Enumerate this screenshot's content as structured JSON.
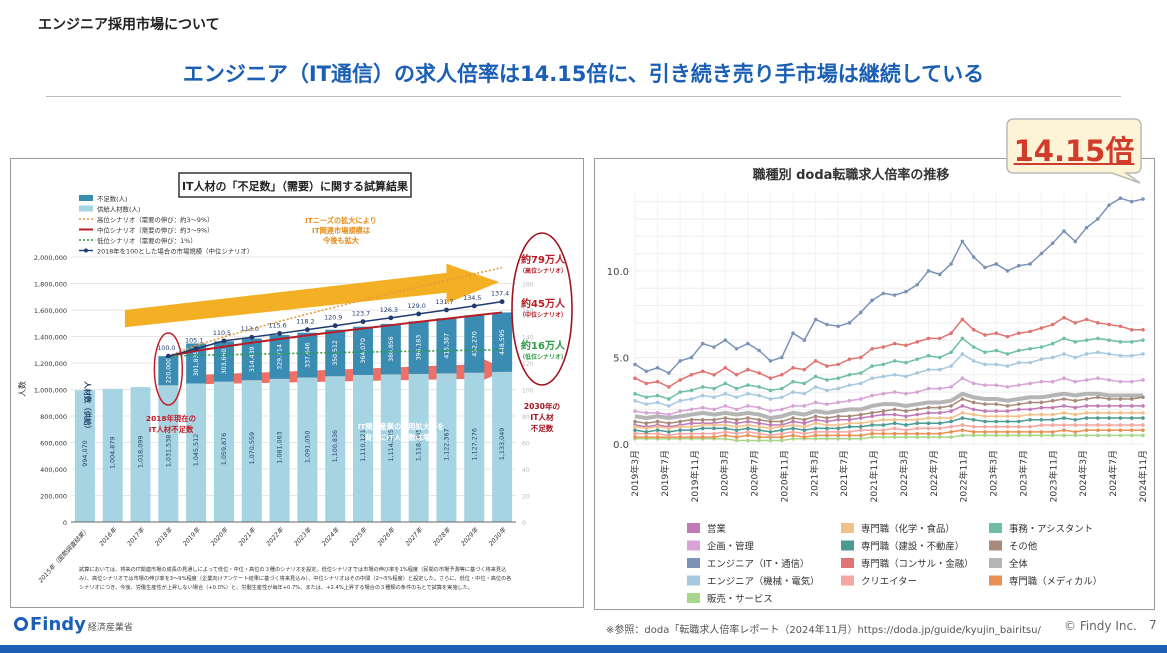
{
  "header": {
    "section_label": "エンジニア採用市場について",
    "headline": "エンジニア（IT通信）の求人倍率は14.15倍に、引き続き売り手市場は継続している"
  },
  "callout": {
    "text": "14.15倍",
    "fill": "#fdf3d6",
    "stroke": "#b9b9b9"
  },
  "footer": {
    "logo": "Findy",
    "left_source": "経済産業省",
    "source": "※参照：doda「転職求人倍率レポート（2024年11月）https://doda.jp/guide/kyujin_bairitsu/",
    "copyright": "© Findy Inc.",
    "page": "7"
  },
  "colors": {
    "bar": "#a7d4e2",
    "shortage": "#3b8cb3",
    "high": "#e79a3a",
    "mid": "#b81c26",
    "low": "#2d9a45",
    "line": "#1f3a6e",
    "accent": "#1a5fb4"
  },
  "chart_data": [
    {
      "type": "bar",
      "title": "IT人材の「不足数」（需要）に関する試算結果",
      "ylabel": "人数",
      "ylim": [
        0,
        2000000
      ],
      "y_ticks": [
        "0",
        "200,000",
        "400,000",
        "600,000",
        "800,000",
        "1,000,000",
        "1,200,000",
        "1,400,000",
        "1,600,000",
        "1,800,000",
        "2,000,000"
      ],
      "categories": [
        "2015年（国勢調査結果）",
        "2016年",
        "2017年",
        "2018年",
        "2019年",
        "2020年",
        "2021年",
        "2022年",
        "2023年",
        "2024年",
        "2025年",
        "2026年",
        "2027年",
        "2028年",
        "2029年",
        "2030年"
      ],
      "series": [
        {
          "name": "供給人材数(人)",
          "values": [
            994070,
            1004879,
            1018099,
            1031538,
            1045512,
            1059876,
            1070559,
            1081063,
            1091050,
            1100836,
            1110121,
            1114225,
            1118085,
            1122367,
            1127276,
            1133049
          ]
        },
        {
          "name": "不足数(人)",
          "values": [
            null,
            null,
            null,
            220000,
            301835,
            303660,
            314439,
            329714,
            337646,
            350512,
            364070,
            380856,
            396183,
            415387,
            432270,
            448595
          ]
        }
      ],
      "supply_labels": [
        "994,070",
        "1,004,879",
        "1,018,099",
        "1,031,538",
        "1,045,512",
        "1,059,876",
        "1,070,559",
        "1,081,063",
        "1,091,050",
        "1,100,836",
        "1,110,121",
        "1,114,225",
        "1,118,085",
        "1,122,367",
        "1,127,276",
        "1,133,049"
      ],
      "shortage_labels": [
        "",
        "",
        "",
        "220,000",
        "301,835",
        "303,660",
        "314,439",
        "329,714",
        "337,646",
        "350,512",
        "364,070",
        "380,856",
        "396,183",
        "415,387",
        "432,270",
        "448,595"
      ],
      "market_line": {
        "name": "2018年を100とした場合の市場規模（中位シナリオ）",
        "values": [
          100.0,
          105.1,
          110.5,
          113.0,
          115.6,
          118.2,
          120.9,
          123.7,
          126.3,
          129.0,
          131.7,
          134.5,
          137.4
        ],
        "labels": [
          "100.0",
          "105.1",
          "110.5",
          "113.0",
          "115.6",
          "118.2",
          "120.9",
          "123.7",
          "126.3",
          "129.0",
          "131.7",
          "134.5",
          "137.4"
        ]
      },
      "scenarios": [
        {
          "name": "高位シナリオ（需要の伸び：約3〜9%）",
          "result": "約79万人",
          "sub": "（高位シナリオ）"
        },
        {
          "name": "中位シナリオ（需要の伸び：約3〜9%）",
          "result": "約45万人",
          "sub": "（中位シナリオ）"
        },
        {
          "name": "低位シナリオ（需要の伸び：1%）",
          "result": "約16万人",
          "sub": "（低位シナリオ）"
        }
      ],
      "legend": [
        "不足数(人)",
        "供給人材数(人)",
        "高位シナリオ（需要の伸び：約3〜9%）",
        "中位シナリオ（需要の伸び：約3〜9%）",
        "低位シナリオ（需要の伸び：1%）",
        "2018年を100とした場合の市場規模（中位シナリオ）"
      ],
      "annotations": {
        "upper_arrow": [
          "ITニーズの拡大により",
          "IT関連市場規模は",
          "今後も拡大"
        ],
        "lower_arrow": [
          "IT関連産業の採用拡大等を",
          "背景にIT人材数は増加"
        ],
        "year_2018": [
          "2018年現在の",
          "IT人材不足数"
        ],
        "year_2030": [
          "2030年の",
          "IT人材",
          "不足数"
        ],
        "side_label": "人材数（供給）"
      },
      "footnote": [
        "試算においては、将来のIT関連市場の成長の見通しによって低位・中位・高位の３種のシナリオを設定。低位シナリオでは市場の伸び率を1%程度（民間の市場予測等に基づく将来見込",
        "み）、高位シナリオでは市場の伸び率を3〜9%程度（企業向けアンケート結果に基づく将来見込み）、中位シナリオはその中間（2〜5%程度）と設定した。さらに、低位・中位・高位の各",
        "シナリオにつき、今後、労働生産性が上昇しない場合（+0.0%）と、労働生産性が毎年+0.7%、または、+2.4%上昇する場合の３種類の条件のもとで試算を実施した。"
      ]
    },
    {
      "type": "line",
      "title": "職種別  doda転職求人倍率の推移",
      "ylim": [
        0,
        14.5
      ],
      "y_ticks": [
        "0.0",
        "5.0",
        "10.0"
      ],
      "x_ticks": [
        "2019年3月",
        "2019年7月",
        "2019年11月",
        "2020年3月",
        "2020年7月",
        "2020年11月",
        "2021年3月",
        "2021年7月",
        "2021年11月",
        "2022年3月",
        "2022年7月",
        "2022年11月",
        "2023年3月",
        "2023年7月",
        "2023年11月",
        "2024年3月",
        "2024年7月",
        "2024年11月"
      ],
      "series": [
        {
          "name": "エンジニア（IT・通信）",
          "color": "#7c93b8",
          "values": [
            4.6,
            4.2,
            4.4,
            4.1,
            4.8,
            5.0,
            5.8,
            5.6,
            6.0,
            5.5,
            5.8,
            5.4,
            4.8,
            5.0,
            6.4,
            6.0,
            7.2,
            6.9,
            6.8,
            7.0,
            7.6,
            8.3,
            8.7,
            8.6,
            8.8,
            9.2,
            10.0,
            9.8,
            10.4,
            11.7,
            10.8,
            10.2,
            10.4,
            10.0,
            10.3,
            10.4,
            11.0,
            11.6,
            12.3,
            11.7,
            12.5,
            13.0,
            13.8,
            14.2,
            14.0,
            14.15
          ]
        },
        {
          "name": "専門職（コンサル・金融）",
          "color": "#e07470",
          "values": [
            3.8,
            3.5,
            3.6,
            3.3,
            3.7,
            4.0,
            4.2,
            4.0,
            4.4,
            4.0,
            4.3,
            4.1,
            3.8,
            4.0,
            4.4,
            4.3,
            4.8,
            4.5,
            4.6,
            4.9,
            5.0,
            5.5,
            5.6,
            5.8,
            5.7,
            5.9,
            6.1,
            6.1,
            6.4,
            7.2,
            6.6,
            6.3,
            6.4,
            6.2,
            6.4,
            6.5,
            6.7,
            6.9,
            7.3,
            7.0,
            7.2,
            7.0,
            6.9,
            6.8,
            6.6,
            6.6
          ]
        },
        {
          "name": "事務・アシスタント",
          "color": "#6fbfa8",
          "values": [
            2.9,
            2.7,
            2.8,
            2.6,
            3.0,
            3.1,
            3.3,
            3.2,
            3.5,
            3.2,
            3.4,
            3.3,
            3.1,
            3.2,
            3.6,
            3.5,
            3.9,
            3.7,
            3.8,
            4.0,
            4.1,
            4.5,
            4.6,
            4.8,
            4.7,
            4.9,
            5.1,
            5.0,
            5.3,
            6.1,
            5.6,
            5.3,
            5.4,
            5.2,
            5.4,
            5.5,
            5.6,
            5.8,
            6.1,
            5.9,
            6.0,
            6.1,
            6.0,
            5.9,
            5.9,
            6.0
          ]
        },
        {
          "name": "エンジニア（機械・電気）",
          "color": "#a6c9e0",
          "values": [
            2.5,
            2.3,
            2.4,
            2.2,
            2.5,
            2.6,
            2.8,
            2.7,
            2.9,
            2.7,
            2.9,
            2.8,
            2.6,
            2.7,
            3.0,
            2.9,
            3.3,
            3.1,
            3.2,
            3.4,
            3.5,
            3.8,
            3.9,
            4.0,
            3.9,
            4.1,
            4.3,
            4.3,
            4.5,
            5.2,
            4.8,
            4.6,
            4.6,
            4.5,
            4.7,
            4.7,
            4.9,
            5.0,
            5.2,
            5.0,
            5.2,
            5.3,
            5.2,
            5.1,
            5.1,
            5.2
          ]
        },
        {
          "name": "企画・管理",
          "color": "#d7a3d6",
          "values": [
            1.9,
            1.8,
            1.8,
            1.7,
            1.9,
            2.0,
            2.1,
            2.0,
            2.2,
            2.0,
            2.2,
            2.1,
            1.9,
            2.0,
            2.2,
            2.2,
            2.4,
            2.3,
            2.4,
            2.5,
            2.6,
            2.8,
            2.9,
            3.0,
            2.9,
            3.0,
            3.2,
            3.2,
            3.3,
            3.8,
            3.5,
            3.4,
            3.4,
            3.3,
            3.4,
            3.5,
            3.6,
            3.6,
            3.8,
            3.6,
            3.7,
            3.8,
            3.7,
            3.6,
            3.6,
            3.7
          ]
        },
        {
          "name": "その他",
          "color": "#a88a7a",
          "values": [
            1.3,
            1.2,
            1.3,
            1.2,
            1.3,
            1.4,
            1.4,
            1.4,
            1.5,
            1.4,
            1.5,
            1.4,
            1.3,
            1.3,
            1.5,
            1.4,
            1.6,
            1.5,
            1.6,
            1.6,
            1.7,
            1.8,
            1.9,
            2.0,
            1.9,
            2.0,
            2.1,
            2.1,
            2.2,
            2.6,
            2.4,
            2.3,
            2.3,
            2.2,
            2.3,
            2.4,
            2.4,
            2.5,
            2.6,
            2.5,
            2.6,
            2.7,
            2.6,
            2.6,
            2.6,
            2.7
          ]
        },
        {
          "name": "全体",
          "color": "#b5b5b5",
          "values": [
            1.6,
            1.5,
            1.6,
            1.5,
            1.6,
            1.7,
            1.8,
            1.7,
            1.8,
            1.7,
            1.8,
            1.7,
            1.5,
            1.6,
            1.8,
            1.7,
            1.9,
            1.8,
            1.9,
            2.0,
            2.0,
            2.2,
            2.3,
            2.3,
            2.2,
            2.3,
            2.4,
            2.4,
            2.5,
            2.9,
            2.7,
            2.6,
            2.6,
            2.5,
            2.6,
            2.7,
            2.7,
            2.8,
            2.9,
            2.8,
            2.9,
            2.9,
            2.8,
            2.8,
            2.8,
            2.8
          ]
        },
        {
          "name": "専門職（化学・食品）",
          "color": "#f2c08a",
          "values": [
            1.0,
            0.9,
            1.0,
            0.9,
            1.0,
            1.0,
            1.1,
            1.1,
            1.1,
            1.0,
            1.1,
            1.0,
            0.9,
            1.0,
            1.1,
            1.0,
            1.2,
            1.1,
            1.1,
            1.2,
            1.2,
            1.3,
            1.4,
            1.4,
            1.4,
            1.4,
            1.5,
            1.5,
            1.5,
            1.8,
            1.7,
            1.6,
            1.6,
            1.6,
            1.6,
            1.7,
            1.7,
            1.7,
            1.8,
            1.7,
            1.8,
            1.8,
            1.8,
            1.8,
            1.8,
            1.8
          ]
        },
        {
          "name": "専門職（建設・不動産）",
          "color": "#4c9a94",
          "values": [
            0.8,
            0.7,
            0.8,
            0.7,
            0.8,
            0.8,
            0.9,
            0.9,
            0.9,
            0.8,
            0.9,
            0.8,
            0.7,
            0.8,
            0.9,
            0.8,
            0.9,
            0.9,
            0.9,
            1.0,
            1.0,
            1.1,
            1.1,
            1.2,
            1.1,
            1.2,
            1.2,
            1.2,
            1.3,
            1.5,
            1.4,
            1.3,
            1.3,
            1.3,
            1.3,
            1.4,
            1.4,
            1.4,
            1.5,
            1.4,
            1.5,
            1.5,
            1.5,
            1.5,
            1.5,
            1.5
          ]
        },
        {
          "name": "クリエイター",
          "color": "#f4a6a0",
          "values": [
            0.6,
            0.6,
            0.6,
            0.5,
            0.6,
            0.6,
            0.6,
            0.6,
            0.7,
            0.6,
            0.7,
            0.6,
            0.5,
            0.6,
            0.7,
            0.6,
            0.7,
            0.7,
            0.7,
            0.7,
            0.8,
            0.8,
            0.8,
            0.9,
            0.8,
            0.9,
            0.9,
            0.9,
            1.0,
            1.1,
            1.0,
            1.0,
            1.0,
            1.0,
            1.0,
            1.0,
            1.1,
            1.1,
            1.1,
            1.1,
            1.1,
            1.1,
            1.1,
            1.1,
            1.1,
            1.1
          ]
        },
        {
          "name": "営業",
          "color": "#c07ab8",
          "values": [
            1.1,
            1.0,
            1.1,
            1.0,
            1.1,
            1.2,
            1.2,
            1.2,
            1.3,
            1.2,
            1.3,
            1.2,
            1.1,
            1.1,
            1.3,
            1.2,
            1.4,
            1.3,
            1.4,
            1.4,
            1.5,
            1.6,
            1.7,
            1.7,
            1.6,
            1.7,
            1.8,
            1.8,
            1.9,
            2.2,
            2.0,
            1.9,
            1.9,
            1.9,
            2.0,
            2.0,
            2.1,
            2.1,
            2.2,
            2.1,
            2.2,
            2.2,
            2.2,
            2.2,
            2.2,
            2.2
          ]
        },
        {
          "name": "専門職（メディカル）",
          "color": "#e89152",
          "values": [
            0.4,
            0.4,
            0.4,
            0.4,
            0.4,
            0.4,
            0.4,
            0.4,
            0.5,
            0.4,
            0.5,
            0.4,
            0.4,
            0.4,
            0.5,
            0.4,
            0.5,
            0.5,
            0.5,
            0.5,
            0.5,
            0.6,
            0.6,
            0.6,
            0.6,
            0.6,
            0.6,
            0.6,
            0.7,
            0.8,
            0.7,
            0.7,
            0.7,
            0.7,
            0.7,
            0.7,
            0.7,
            0.7,
            0.8,
            0.7,
            0.8,
            0.8,
            0.8,
            0.8,
            0.8,
            0.8
          ]
        },
        {
          "name": "販売・サービス",
          "color": "#a8d68a",
          "values": [
            0.3,
            0.3,
            0.3,
            0.3,
            0.3,
            0.3,
            0.3,
            0.3,
            0.3,
            0.2,
            0.2,
            0.2,
            0.2,
            0.2,
            0.3,
            0.3,
            0.3,
            0.3,
            0.3,
            0.3,
            0.3,
            0.4,
            0.4,
            0.4,
            0.4,
            0.4,
            0.4,
            0.4,
            0.4,
            0.5,
            0.5,
            0.5,
            0.5,
            0.5,
            0.5,
            0.5,
            0.5,
            0.5,
            0.5,
            0.5,
            0.5,
            0.5,
            0.5,
            0.5,
            0.5,
            0.5
          ]
        }
      ],
      "legend_order": [
        "営業",
        "専門職（化学・食品）",
        "事務・アシスタント",
        "企画・管理",
        "専門職（建設・不動産）",
        "その他",
        "エンジニア（IT・通信）",
        "専門職（コンサル・金融）",
        "全体",
        "エンジニア（機械・電気）",
        "クリエイター",
        "専門職（メディカル）",
        "販売・サービス"
      ]
    }
  ]
}
